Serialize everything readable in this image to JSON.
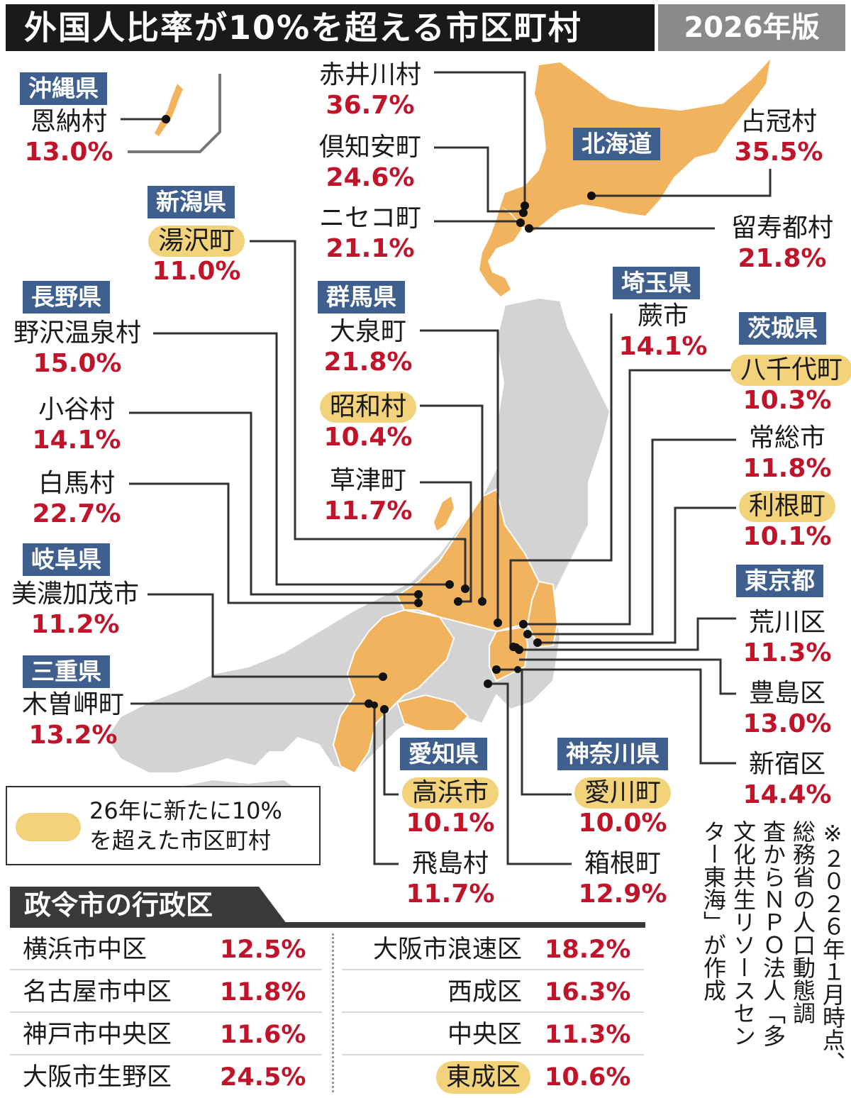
{
  "header": {
    "title": "外国人比率が10%を超える市区町村",
    "edition": "2026年版"
  },
  "colors": {
    "highlight_fill": "#f2b35f",
    "base_fill": "#d3d3d3",
    "new_badge": "#f2d27a",
    "prefecture_badge": "#3f5f8e",
    "percent_text": "#c0142b"
  },
  "prefectures": {
    "okinawa": "沖縄県",
    "hokkaido": "北海道",
    "niigata": "新潟県",
    "nagano": "長野県",
    "gunma": "群馬県",
    "saitama": "埼玉県",
    "ibaraki": "茨城県",
    "tokyo": "東京都",
    "gifu": "岐阜県",
    "mie": "三重県",
    "aichi": "愛知県",
    "kanagawa": "神奈川県"
  },
  "municipalities": [
    {
      "id": "onna",
      "name": "恩納村",
      "percent": "13.0%",
      "new": false
    },
    {
      "id": "akaigawa",
      "name": "赤井川村",
      "percent": "36.7%",
      "new": false
    },
    {
      "id": "kutchan",
      "name": "倶知安町",
      "percent": "24.6%",
      "new": false
    },
    {
      "id": "niseko",
      "name": "ニセコ町",
      "percent": "21.1%",
      "new": false
    },
    {
      "id": "shimukappu",
      "name": "占冠村",
      "percent": "35.5%",
      "new": false
    },
    {
      "id": "rusutsu",
      "name": "留寿都村",
      "percent": "21.8%",
      "new": false
    },
    {
      "id": "yuzawa",
      "name": "湯沢町",
      "percent": "11.0%",
      "new": true
    },
    {
      "id": "nozawaonsen",
      "name": "野沢温泉村",
      "percent": "15.0%",
      "new": false
    },
    {
      "id": "otari",
      "name": "小谷村",
      "percent": "14.1%",
      "new": false
    },
    {
      "id": "hakuba",
      "name": "白馬村",
      "percent": "22.7%",
      "new": false
    },
    {
      "id": "oizumi",
      "name": "大泉町",
      "percent": "21.8%",
      "new": false
    },
    {
      "id": "showa",
      "name": "昭和村",
      "percent": "10.4%",
      "new": true
    },
    {
      "id": "kusatsu",
      "name": "草津町",
      "percent": "11.7%",
      "new": false
    },
    {
      "id": "warabi",
      "name": "蕨市",
      "percent": "14.1%",
      "new": false
    },
    {
      "id": "yachiyo",
      "name": "八千代町",
      "percent": "10.3%",
      "new": true
    },
    {
      "id": "joso",
      "name": "常総市",
      "percent": "11.8%",
      "new": false
    },
    {
      "id": "tone",
      "name": "利根町",
      "percent": "10.1%",
      "new": true
    },
    {
      "id": "arakawa",
      "name": "荒川区",
      "percent": "11.3%",
      "new": false
    },
    {
      "id": "toshima",
      "name": "豊島区",
      "percent": "13.0%",
      "new": false
    },
    {
      "id": "shinjuku",
      "name": "新宿区",
      "percent": "14.4%",
      "new": false
    },
    {
      "id": "minokamo",
      "name": "美濃加茂市",
      "percent": "11.2%",
      "new": false
    },
    {
      "id": "kisosaki",
      "name": "木曽岬町",
      "percent": "13.2%",
      "new": false
    },
    {
      "id": "takahama",
      "name": "高浜市",
      "percent": "10.1%",
      "new": true
    },
    {
      "id": "tobishima",
      "name": "飛島村",
      "percent": "11.7%",
      "new": false
    },
    {
      "id": "aikawa",
      "name": "愛川町",
      "percent": "10.0%",
      "new": true
    },
    {
      "id": "hakone",
      "name": "箱根町",
      "percent": "12.9%",
      "new": false
    }
  ],
  "legend": {
    "text": "26年に新たに10%\nを超えた市区町村"
  },
  "wards": {
    "title": "政令市の行政区",
    "left": [
      {
        "name": "横浜市中区",
        "percent": "12.5%",
        "new": false
      },
      {
        "name": "名古屋市中区",
        "percent": "11.8%",
        "new": false
      },
      {
        "name": "神戸市中央区",
        "percent": "11.6%",
        "new": false
      },
      {
        "name": "大阪市生野区",
        "percent": "24.5%",
        "new": false
      }
    ],
    "right": [
      {
        "name": "大阪市浪速区",
        "percent": "18.2%",
        "new": false
      },
      {
        "name": "西成区",
        "percent": "16.3%",
        "new": false
      },
      {
        "name": "中央区",
        "percent": "11.3%",
        "new": false
      },
      {
        "name": "東成区",
        "percent": "10.6%",
        "new": true
      }
    ]
  },
  "note": {
    "lines": [
      "※２０２６年１月時点、",
      "総務省の人口動態調",
      "査からＮＰＯ法人「多",
      "文化共生リソースセン",
      "ター東海」が作成"
    ]
  }
}
